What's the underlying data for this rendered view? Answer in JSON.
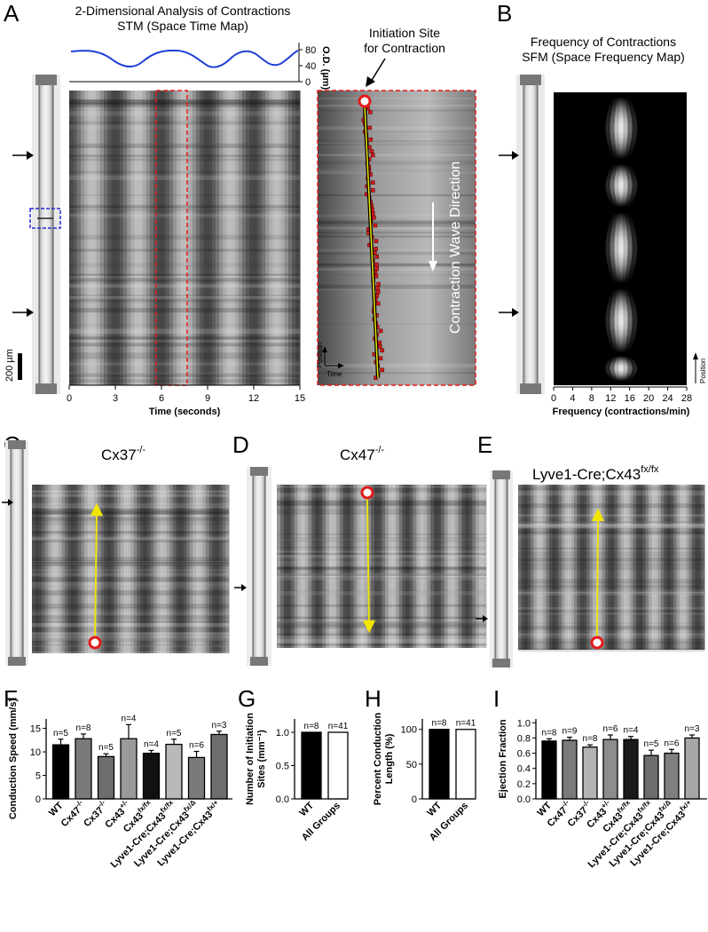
{
  "figure": {
    "panel_labels": [
      "A",
      "B",
      "C",
      "D",
      "E",
      "F",
      "G",
      "H",
      "I"
    ],
    "panelA": {
      "title_line1": "2-Dimensional Analysis of Contractions",
      "title_line2": "STM (Space Time Map)",
      "od_axis_label": "O.D. (µm)",
      "od_ticks": [
        "80",
        "40",
        "0"
      ],
      "time_ticks": [
        "0",
        "3",
        "6",
        "9",
        "12",
        "15"
      ],
      "time_axis_label": "Time (seconds)",
      "scale_bar": "200 µm",
      "initiation_label_line1": "Initiation Site",
      "initiation_label_line2": "for Contraction",
      "wave_label": "Contraction Wave Direction",
      "inset_axis_position": "Position",
      "inset_axis_time": "Time"
    },
    "panelB": {
      "title_line1": "Frequency of Contractions",
      "title_line2": "SFM (Space Frequency Map)",
      "freq_ticks": [
        "0",
        "4",
        "8",
        "12",
        "16",
        "20",
        "24",
        "28"
      ],
      "freq_axis_label": "Frequency (contractions/min)",
      "position_label": "Position"
    },
    "panelC": {
      "genotype": "Cx37",
      "sup": "-/-"
    },
    "panelD": {
      "genotype": "Cx47",
      "sup": "-/-"
    },
    "panelE": {
      "genotype": "Lyve1-Cre;Cx43",
      "sup": "fx/fx"
    }
  },
  "chart_data": [
    {
      "panel": "F",
      "type": "bar",
      "ylabel": "Conduction Speed (mm/s)",
      "ylim": [
        0,
        17
      ],
      "yticks": [
        0,
        5,
        10,
        15
      ],
      "categories": [
        "WT",
        "Cx47-/-",
        "Cx37-/-",
        "Cx43+/-",
        "Cx43fx/fx",
        "Lyve1-Cre;Cx43fx/fx",
        "Lyve1-Cre;Cx43fx/Δ",
        "Lyve1-Cre;Cx43fx/+"
      ],
      "values": [
        11.5,
        12.8,
        9.0,
        12.8,
        9.7,
        11.6,
        8.8,
        13.7
      ],
      "errors": [
        1.2,
        1.0,
        0.6,
        3.0,
        0.6,
        1.1,
        1.3,
        0.7
      ],
      "n_labels": [
        "n=5",
        "n=8",
        "n=5",
        "n=4",
        "n=4",
        "n=5",
        "n=6",
        "n=3"
      ],
      "colors": [
        "#000000",
        "#7a7a7a",
        "#6d6d6d",
        "#9a9a9a",
        "#111111",
        "#b9b9b9",
        "#7a7a7a",
        "#6d6d6d"
      ]
    },
    {
      "panel": "G",
      "type": "bar",
      "ylabel": "Number of Initiation Sites (mm⁻¹)",
      "ylim": [
        0,
        1.2
      ],
      "yticks": [
        0.0,
        0.5,
        1.0
      ],
      "categories": [
        "WT",
        "All Groups"
      ],
      "values": [
        1.0,
        1.0
      ],
      "errors": [
        0,
        0
      ],
      "n_labels": [
        "n=8",
        "n=41"
      ],
      "colors": [
        "#000000",
        "#ffffff"
      ]
    },
    {
      "panel": "H",
      "type": "bar",
      "ylabel": "Percent Conduction Length (%)",
      "ylim": [
        0,
        115
      ],
      "yticks": [
        0,
        50,
        100
      ],
      "categories": [
        "WT",
        "All Groups"
      ],
      "values": [
        100,
        100
      ],
      "errors": [
        0,
        0
      ],
      "n_labels": [
        "n=8",
        "n=41"
      ],
      "colors": [
        "#000000",
        "#ffffff"
      ]
    },
    {
      "panel": "I",
      "type": "bar",
      "ylabel": "Ejection Fraction",
      "ylim": [
        0,
        1.05
      ],
      "yticks": [
        0.0,
        0.2,
        0.4,
        0.6,
        0.8,
        1.0
      ],
      "categories": [
        "WT",
        "Cx47-/-",
        "Cx37-/-",
        "Cx43+/-",
        "Cx43fx/fx",
        "Lyve1-Cre;Cx43fx/fx",
        "Lyve1-Cre;Cx43fx/Δ",
        "Lyve1-Cre;Cx43fx/+"
      ],
      "values": [
        0.76,
        0.77,
        0.68,
        0.78,
        0.78,
        0.57,
        0.6,
        0.8
      ],
      "errors": [
        0.03,
        0.04,
        0.03,
        0.06,
        0.04,
        0.07,
        0.05,
        0.04
      ],
      "n_labels": [
        "n=8",
        "n=9",
        "n=8",
        "n=6",
        "n=4",
        "n=5",
        "n=6",
        "n=3"
      ],
      "colors": [
        "#000000",
        "#7a7a7a",
        "#b3b3b3",
        "#8c8c8c",
        "#1a1a1a",
        "#6d6d6d",
        "#7f7f7f",
        "#a6a6a6"
      ]
    }
  ]
}
